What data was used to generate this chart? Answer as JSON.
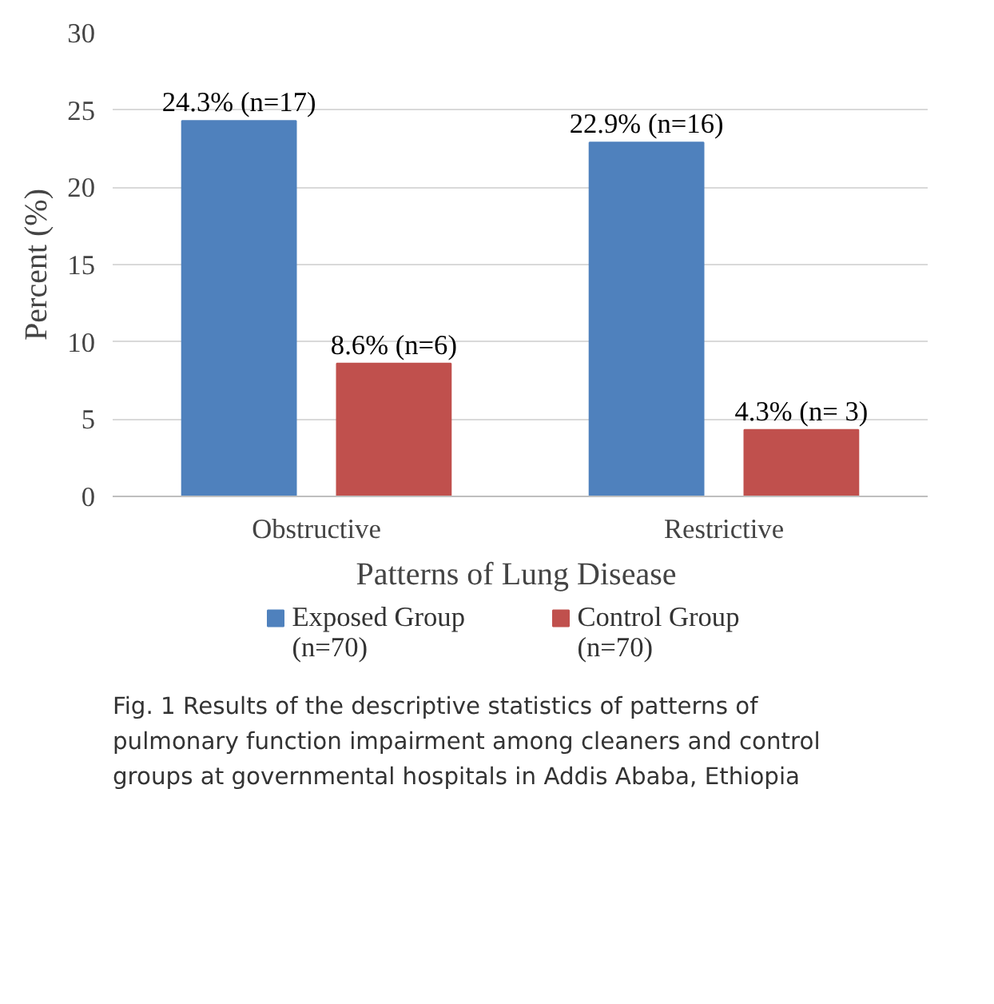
{
  "chart_data": {
    "type": "bar",
    "categories": [
      "Obstructive",
      "Restrictive"
    ],
    "series": [
      {
        "name": "Exposed Group\n(n=70)",
        "color": "#4f81bd",
        "values": [
          24.3,
          22.9
        ],
        "value_labels": [
          "24.3% (n=17)",
          "22.9% (n=16)"
        ]
      },
      {
        "name": "Control Group\n(n=70)",
        "color": "#c0504d",
        "values": [
          8.6,
          4.3
        ],
        "value_labels": [
          "8.6% (n=6)",
          "4.3% (n= 3)"
        ]
      }
    ],
    "xlabel": "Patterns  of Lung Disease",
    "ylabel": "Percent (%)",
    "ylim": [
      0,
      30
    ],
    "yticks": [
      0,
      5,
      10,
      15,
      20,
      25,
      30
    ],
    "grid": "y",
    "legend": "bottom",
    "annotations": [
      "Fig. 1  Results of the descriptive statistics of patterns of pulmonary function impairment among cleaners and control groups at governmental hospitals in Addis Ababa, Ethiopia"
    ]
  }
}
